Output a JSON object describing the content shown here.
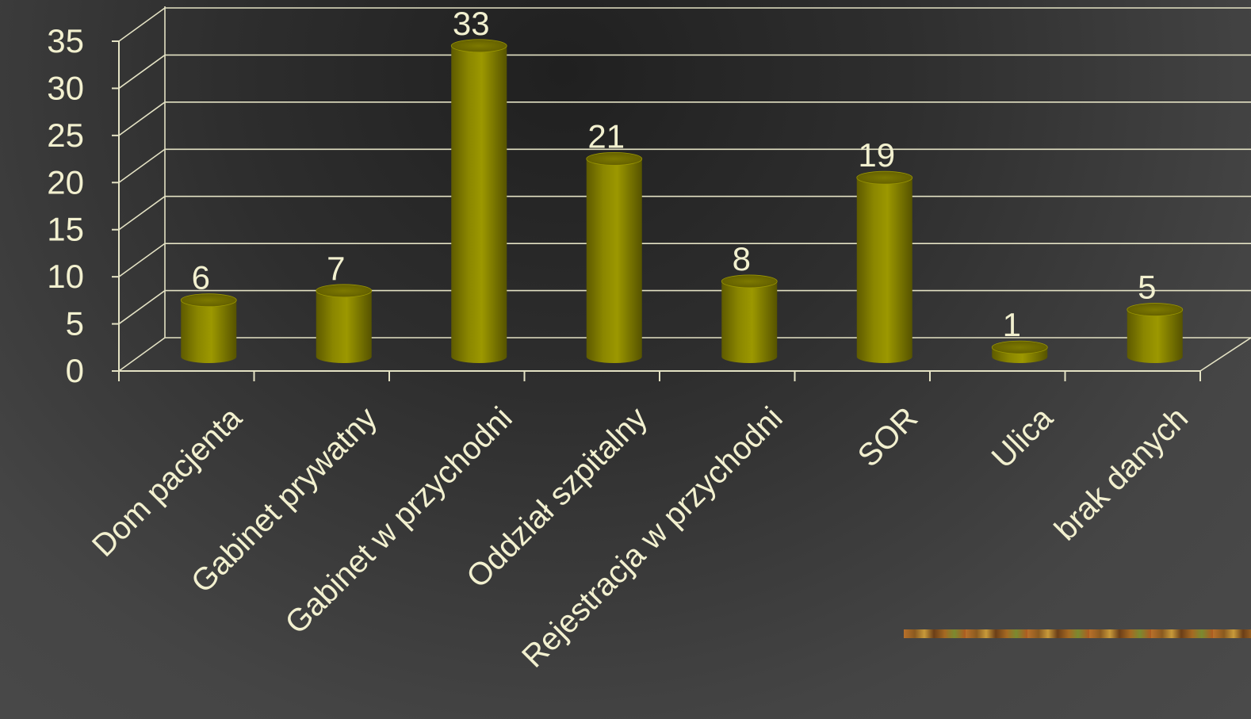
{
  "chart_data": {
    "type": "bar",
    "style": "3d-cylinder",
    "title": "",
    "xlabel": "",
    "ylabel": "",
    "categories": [
      "Dom pacjenta",
      "Gabinet prywatny",
      "Gabinet w przychodni",
      "Oddział szpitalny",
      "Rejestracja w przychodni",
      "SOR",
      "Ulica",
      "brak danych"
    ],
    "values": [
      6,
      7,
      33,
      21,
      8,
      19,
      1,
      5
    ],
    "value_labels": [
      "6",
      "7",
      "33",
      "21",
      "8",
      "19",
      "1",
      "5"
    ],
    "ylim": [
      0,
      35
    ],
    "yticks": [
      0,
      5,
      10,
      15,
      20,
      25,
      30,
      35
    ],
    "ytick_labels": [
      "0",
      "5",
      "10",
      "15",
      "20",
      "25",
      "30",
      "35"
    ],
    "grid": true,
    "legend": "none",
    "colors": {
      "bar": "#8a8500",
      "text": "#f2f0cf",
      "grid": "#e4e2c4"
    }
  }
}
